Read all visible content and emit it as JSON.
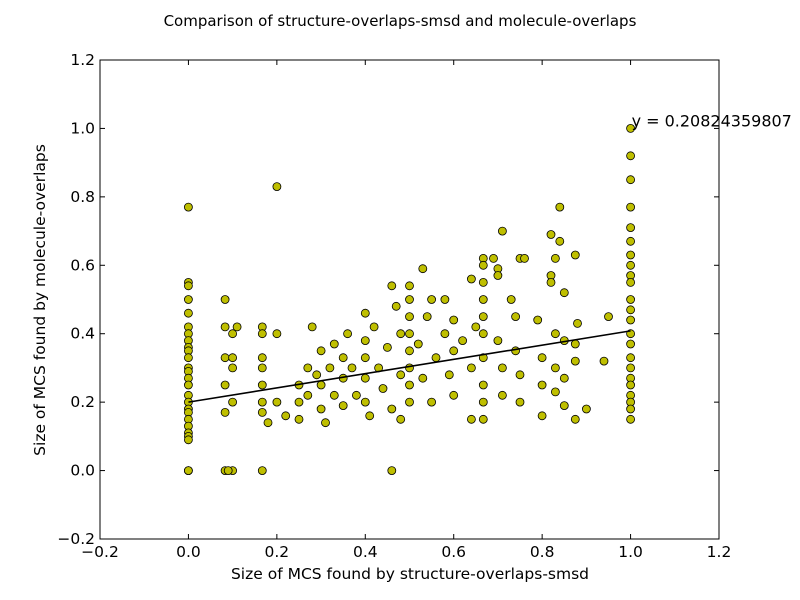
{
  "chart_data": {
    "type": "scatter",
    "title": "Comparison of structure-overlaps-smsd and molecule-overlaps",
    "xlabel": "Size of MCS found by structure-overlaps-smsd",
    "ylabel": "Size of MCS found by molecule-overlaps",
    "xlim": [
      -0.2,
      1.2
    ],
    "ylim": [
      -0.2,
      1.2
    ],
    "xticks": [
      "−0.2",
      "0.0",
      "0.2",
      "0.4",
      "0.6",
      "0.8",
      "1.0",
      "1.2"
    ],
    "yticks": [
      "−0.2",
      "0.0",
      "0.2",
      "0.4",
      "0.6",
      "0.8",
      "1.0",
      "1.2"
    ],
    "grid": false,
    "marker_color": "#bfbf00",
    "marker_edge": "#000000",
    "trendline": {
      "slope": 0.208243598,
      "intercept": 0.2,
      "x_range": [
        0.0,
        1.0
      ],
      "color": "#000000"
    },
    "annotation": {
      "text": "y = 0.20824359807",
      "x": 1.0,
      "y": 1.0
    },
    "series": [
      {
        "points": [
          [
            0.0,
            0.77
          ],
          [
            0.0,
            0.55
          ],
          [
            0.0,
            0.54
          ],
          [
            0.0,
            0.5
          ],
          [
            0.0,
            0.46
          ],
          [
            0.0,
            0.42
          ],
          [
            0.0,
            0.4
          ],
          [
            0.0,
            0.38
          ],
          [
            0.0,
            0.36
          ],
          [
            0.0,
            0.35
          ],
          [
            0.0,
            0.33
          ],
          [
            0.0,
            0.3
          ],
          [
            0.0,
            0.29
          ],
          [
            0.0,
            0.27
          ],
          [
            0.0,
            0.25
          ],
          [
            0.0,
            0.22
          ],
          [
            0.0,
            0.2
          ],
          [
            0.0,
            0.18
          ],
          [
            0.0,
            0.17
          ],
          [
            0.0,
            0.15
          ],
          [
            0.0,
            0.13
          ],
          [
            0.0,
            0.11
          ],
          [
            0.0,
            0.1
          ],
          [
            0.0,
            0.09
          ],
          [
            0.0,
            0.0
          ],
          [
            0.0,
            0.0
          ],
          [
            0.083,
            0.5
          ],
          [
            0.083,
            0.42
          ],
          [
            0.083,
            0.33
          ],
          [
            0.083,
            0.25
          ],
          [
            0.083,
            0.17
          ],
          [
            0.083,
            0.0
          ],
          [
            0.1,
            0.4
          ],
          [
            0.1,
            0.33
          ],
          [
            0.1,
            0.3
          ],
          [
            0.1,
            0.2
          ],
          [
            0.1,
            0.0
          ],
          [
            0.09,
            0.0
          ],
          [
            0.11,
            0.42
          ],
          [
            0.167,
            0.42
          ],
          [
            0.167,
            0.4
          ],
          [
            0.167,
            0.33
          ],
          [
            0.167,
            0.3
          ],
          [
            0.167,
            0.25
          ],
          [
            0.167,
            0.2
          ],
          [
            0.167,
            0.17
          ],
          [
            0.167,
            0.0
          ],
          [
            0.2,
            0.83
          ],
          [
            0.2,
            0.4
          ],
          [
            0.2,
            0.2
          ],
          [
            0.18,
            0.14
          ],
          [
            0.22,
            0.16
          ],
          [
            0.25,
            0.25
          ],
          [
            0.25,
            0.2
          ],
          [
            0.25,
            0.15
          ],
          [
            0.27,
            0.3
          ],
          [
            0.27,
            0.22
          ],
          [
            0.28,
            0.42
          ],
          [
            0.29,
            0.28
          ],
          [
            0.3,
            0.35
          ],
          [
            0.3,
            0.25
          ],
          [
            0.3,
            0.18
          ],
          [
            0.31,
            0.14
          ],
          [
            0.32,
            0.3
          ],
          [
            0.33,
            0.37
          ],
          [
            0.33,
            0.22
          ],
          [
            0.35,
            0.33
          ],
          [
            0.35,
            0.27
          ],
          [
            0.35,
            0.19
          ],
          [
            0.36,
            0.4
          ],
          [
            0.37,
            0.3
          ],
          [
            0.38,
            0.22
          ],
          [
            0.4,
            0.46
          ],
          [
            0.4,
            0.38
          ],
          [
            0.4,
            0.33
          ],
          [
            0.4,
            0.27
          ],
          [
            0.4,
            0.2
          ],
          [
            0.41,
            0.16
          ],
          [
            0.42,
            0.42
          ],
          [
            0.43,
            0.3
          ],
          [
            0.44,
            0.24
          ],
          [
            0.45,
            0.36
          ],
          [
            0.46,
            0.54
          ],
          [
            0.46,
            0.0
          ],
          [
            0.46,
            0.18
          ],
          [
            0.47,
            0.48
          ],
          [
            0.48,
            0.4
          ],
          [
            0.48,
            0.28
          ],
          [
            0.48,
            0.15
          ],
          [
            0.5,
            0.54
          ],
          [
            0.5,
            0.5
          ],
          [
            0.5,
            0.45
          ],
          [
            0.5,
            0.4
          ],
          [
            0.5,
            0.35
          ],
          [
            0.5,
            0.3
          ],
          [
            0.5,
            0.25
          ],
          [
            0.5,
            0.2
          ],
          [
            0.52,
            0.37
          ],
          [
            0.53,
            0.59
          ],
          [
            0.53,
            0.27
          ],
          [
            0.54,
            0.45
          ],
          [
            0.55,
            0.5
          ],
          [
            0.55,
            0.2
          ],
          [
            0.56,
            0.33
          ],
          [
            0.58,
            0.5
          ],
          [
            0.58,
            0.4
          ],
          [
            0.59,
            0.28
          ],
          [
            0.6,
            0.44
          ],
          [
            0.6,
            0.35
          ],
          [
            0.6,
            0.22
          ],
          [
            0.62,
            0.38
          ],
          [
            0.64,
            0.56
          ],
          [
            0.64,
            0.3
          ],
          [
            0.64,
            0.15
          ],
          [
            0.65,
            0.42
          ],
          [
            0.667,
            0.62
          ],
          [
            0.667,
            0.6
          ],
          [
            0.667,
            0.55
          ],
          [
            0.667,
            0.5
          ],
          [
            0.667,
            0.45
          ],
          [
            0.667,
            0.4
          ],
          [
            0.667,
            0.33
          ],
          [
            0.667,
            0.25
          ],
          [
            0.667,
            0.2
          ],
          [
            0.667,
            0.15
          ],
          [
            0.69,
            0.62
          ],
          [
            0.7,
            0.59
          ],
          [
            0.7,
            0.57
          ],
          [
            0.71,
            0.7
          ],
          [
            0.7,
            0.38
          ],
          [
            0.71,
            0.3
          ],
          [
            0.71,
            0.22
          ],
          [
            0.73,
            0.5
          ],
          [
            0.74,
            0.45
          ],
          [
            0.74,
            0.35
          ],
          [
            0.75,
            0.62
          ],
          [
            0.75,
            0.28
          ],
          [
            0.75,
            0.2
          ],
          [
            0.76,
            0.62
          ],
          [
            0.79,
            0.44
          ],
          [
            0.8,
            0.33
          ],
          [
            0.8,
            0.25
          ],
          [
            0.8,
            0.16
          ],
          [
            0.82,
            0.69
          ],
          [
            0.82,
            0.57
          ],
          [
            0.82,
            0.55
          ],
          [
            0.83,
            0.62
          ],
          [
            0.83,
            0.4
          ],
          [
            0.83,
            0.3
          ],
          [
            0.83,
            0.23
          ],
          [
            0.84,
            0.77
          ],
          [
            0.84,
            0.67
          ],
          [
            0.85,
            0.52
          ],
          [
            0.85,
            0.38
          ],
          [
            0.85,
            0.27
          ],
          [
            0.85,
            0.19
          ],
          [
            0.875,
            0.63
          ],
          [
            0.875,
            0.37
          ],
          [
            0.875,
            0.32
          ],
          [
            0.875,
            0.15
          ],
          [
            0.88,
            0.43
          ],
          [
            0.9,
            0.18
          ],
          [
            0.94,
            0.32
          ],
          [
            0.95,
            0.45
          ],
          [
            1.0,
            1.0
          ],
          [
            1.0,
            0.92
          ],
          [
            1.0,
            0.85
          ],
          [
            1.0,
            0.77
          ],
          [
            1.0,
            0.71
          ],
          [
            1.0,
            0.67
          ],
          [
            1.0,
            0.63
          ],
          [
            1.0,
            0.6
          ],
          [
            1.0,
            0.57
          ],
          [
            1.0,
            0.55
          ],
          [
            1.0,
            0.5
          ],
          [
            1.0,
            0.47
          ],
          [
            1.0,
            0.44
          ],
          [
            1.0,
            0.4
          ],
          [
            1.0,
            0.37
          ],
          [
            1.0,
            0.33
          ],
          [
            1.0,
            0.3
          ],
          [
            1.0,
            0.27
          ],
          [
            1.0,
            0.25
          ],
          [
            1.0,
            0.22
          ],
          [
            1.0,
            0.2
          ],
          [
            1.0,
            0.18
          ],
          [
            1.0,
            0.15
          ]
        ]
      }
    ]
  }
}
